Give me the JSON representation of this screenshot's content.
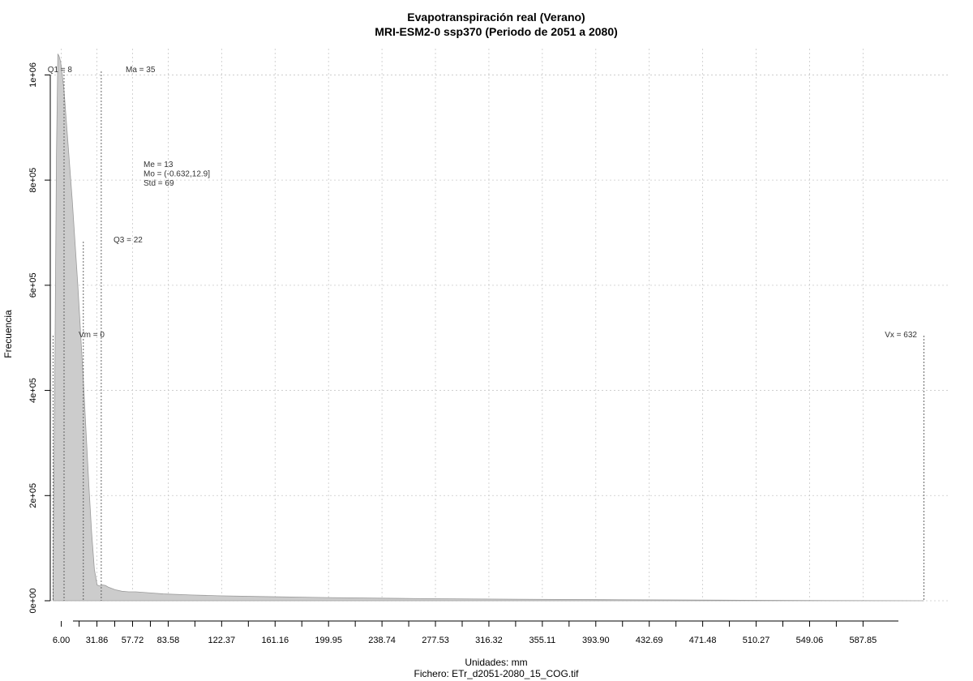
{
  "chart_data": {
    "type": "area",
    "title": "Evapotranspiración real (Verano)",
    "subtitle": "MRI-ESM2-0 ssp370 (Periodo de 2051 a 2080)",
    "xlabel": "Unidades: mm",
    "ylabel": "Frecuencia",
    "footer": "Fichero: ETr_d2051-2080_15_COG.tif",
    "xlim": [
      -2,
      650
    ],
    "ylim": [
      0,
      1050000
    ],
    "x_ticks": [
      "6.00",
      "31.86",
      "57.72",
      "83.58",
      "122.37",
      "161.16",
      "199.95",
      "238.74",
      "277.53",
      "316.32",
      "355.11",
      "393.90",
      "432.69",
      "471.48",
      "510.27",
      "549.06",
      "587.85"
    ],
    "y_ticks": [
      "0e+00",
      "2e+05",
      "4e+05",
      "6e+05",
      "8e+05",
      "1e+06"
    ],
    "grid": true,
    "series": [
      {
        "x": [
          0,
          0.5,
          1.5,
          2.5,
          3.5,
          4.5,
          5.5,
          6.5,
          8,
          10,
          12,
          14,
          16,
          18,
          20,
          22,
          24,
          26,
          28,
          30,
          32,
          34,
          36,
          38,
          40,
          45,
          50,
          55,
          60,
          70,
          80,
          100,
          120,
          150,
          200,
          250,
          300,
          350,
          400,
          450,
          500,
          560,
          600,
          632
        ],
        "values": [
          0,
          200000,
          500000,
          850000,
          1040000,
          1035000,
          1025000,
          1005000,
          970000,
          900000,
          830000,
          760000,
          680000,
          600000,
          510000,
          420000,
          320000,
          220000,
          130000,
          60000,
          30000,
          28000,
          30000,
          29000,
          26000,
          21000,
          18000,
          17000,
          17000,
          15000,
          13000,
          11000,
          9500,
          8000,
          6000,
          4500,
          3500,
          2700,
          2000,
          1500,
          1000,
          400,
          150,
          0
        ]
      }
    ],
    "vlines": [
      {
        "label": "Q1 = 8",
        "x": 8
      },
      {
        "label": "Ma = 35",
        "x": 35
      },
      {
        "label": "Q3 = 22",
        "x": 22
      },
      {
        "label": "Vm = 0",
        "x": 0
      },
      {
        "label": "Vx = 632",
        "x": 632
      }
    ],
    "stats": [
      "Me = 13",
      "Mo = (-0.632,12.9]",
      "Std = 69"
    ]
  }
}
